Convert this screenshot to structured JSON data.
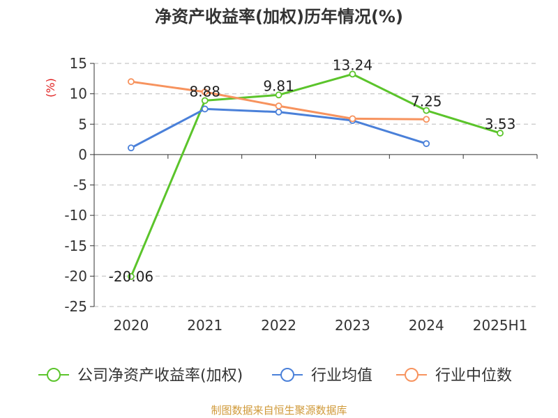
{
  "chart_data": {
    "type": "line",
    "title": "净资产收益率(加权)历年情况(%)",
    "ylabel": "(%)",
    "xlabel": "",
    "categories": [
      "2020",
      "2021",
      "2022",
      "2023",
      "2024",
      "2025H1"
    ],
    "yticks": [
      "15",
      "10",
      "5",
      "0",
      "-5",
      "-10",
      "-15",
      "-20",
      "-25"
    ],
    "ylim": [
      -25,
      15
    ],
    "grid": true,
    "legend_position": "bottom",
    "series": [
      {
        "name": "公司净资产收益率(加权)",
        "color": "#5bc42b",
        "values": [
          -20.06,
          8.88,
          9.81,
          13.24,
          7.25,
          3.53
        ],
        "data_labels": [
          "-20.06",
          "8.88",
          "9.81",
          "13.24",
          "7.25",
          "3.53"
        ]
      },
      {
        "name": "行业均值",
        "color": "#4a80d9",
        "values": [
          1.1,
          7.5,
          7.0,
          5.6,
          1.8,
          null
        ]
      },
      {
        "name": "行业中位数",
        "color": "#f7935e",
        "values": [
          12.0,
          10.3,
          8.0,
          5.9,
          5.8,
          null
        ]
      }
    ]
  },
  "source": "制图数据来自恒生聚源数据库",
  "colors": {
    "title": "#333333",
    "axis": "#333333",
    "grid": "#c8c8c8",
    "ylabel": "#e02020",
    "source": "#d09a3a"
  }
}
